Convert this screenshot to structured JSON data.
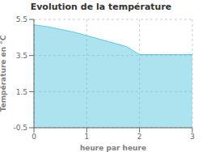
{
  "chart_data": {
    "type": "area",
    "title": "Evolution de la température",
    "xlabel": "heure par heure",
    "ylabel": "Température en °C",
    "x": [
      0,
      0.25,
      0.5,
      0.75,
      1.0,
      1.25,
      1.5,
      1.75,
      2.0,
      2.25,
      2.5,
      2.75,
      3.0
    ],
    "values": [
      5.2,
      5.1,
      4.95,
      4.8,
      4.6,
      4.4,
      4.2,
      4.0,
      3.55,
      3.55,
      3.55,
      3.55,
      3.55
    ],
    "color": "#5bc8e0",
    "xlim": [
      0,
      3
    ],
    "ylim": [
      -0.5,
      5.5
    ],
    "xticks": [
      0,
      1,
      2,
      3
    ],
    "yticks": [
      -0.5,
      1.5,
      3.5,
      5.5
    ],
    "grid": true
  }
}
